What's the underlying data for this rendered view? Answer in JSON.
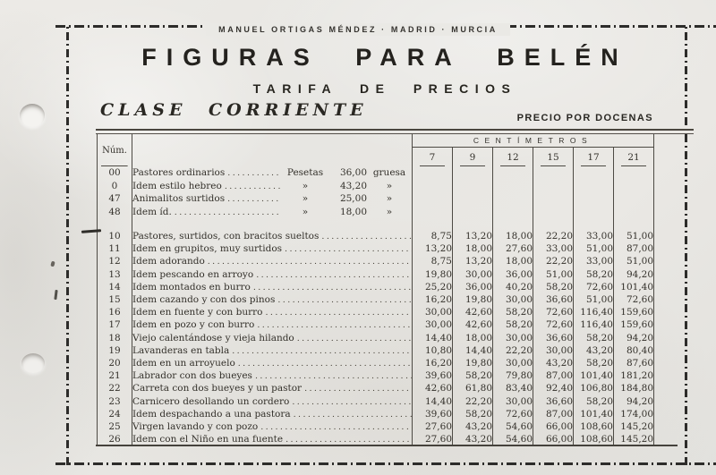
{
  "banner": "MANUEL ORTIGAS MÉNDEZ · MADRID · MURCIA",
  "title": "FIGURAS PARA BELÉN",
  "subtitle": "TARIFA DE PRECIOS",
  "class_label": "CLASE CORRIENTE",
  "price_note": "PRECIO POR DOCENAS",
  "table": {
    "num_header": "Núm.",
    "cm_header": "CENTÍMETROS",
    "sizes": [
      "7",
      "9",
      "12",
      "15",
      "17",
      "21"
    ],
    "gross_rows": [
      {
        "num": "00",
        "desc": "Pastores ordinarios",
        "unit": "Pesetas",
        "price": "36,00",
        "per": "gruesa"
      },
      {
        "num": "0",
        "desc": "Idem estilo hebreo",
        "unit": "»",
        "price": "43,20",
        "per": "»"
      },
      {
        "num": "47",
        "desc": "Animalitos surtidos",
        "unit": "»",
        "price": "25,00",
        "per": "»"
      },
      {
        "num": "48",
        "desc": "Idem íd.",
        "unit": "»",
        "price": "18,00",
        "per": "»"
      }
    ],
    "price_rows": [
      {
        "num": "10",
        "desc": "Pastores, surtidos, con bracitos sueltos",
        "prices": [
          "8,75",
          "13,20",
          "18,00",
          "22,20",
          "33,00",
          "51,00"
        ]
      },
      {
        "num": "11",
        "desc": "Idem en grupitos, muy surtidos",
        "prices": [
          "13,20",
          "18,00",
          "27,60",
          "33,00",
          "51,00",
          "87,00"
        ]
      },
      {
        "num": "12",
        "desc": "Idem adorando",
        "prices": [
          "8,75",
          "13,20",
          "18,00",
          "22,20",
          "33,00",
          "51,00"
        ]
      },
      {
        "num": "13",
        "desc": "Idem pescando en arroyo",
        "prices": [
          "19,80",
          "30,00",
          "36,00",
          "51,00",
          "58,20",
          "94,20"
        ]
      },
      {
        "num": "14",
        "desc": "Idem montados en burro",
        "prices": [
          "25,20",
          "36,00",
          "40,20",
          "58,20",
          "72,60",
          "101,40"
        ]
      },
      {
        "num": "15",
        "desc": "Idem cazando y con dos pinos",
        "prices": [
          "16,20",
          "19,80",
          "30,00",
          "36,60",
          "51,00",
          "72,60"
        ]
      },
      {
        "num": "16",
        "desc": "Idem en fuente y con burro",
        "prices": [
          "30,00",
          "42,60",
          "58,20",
          "72,60",
          "116,40",
          "159,60"
        ]
      },
      {
        "num": "17",
        "desc": "Idem en pozo y con burro",
        "prices": [
          "30,00",
          "42,60",
          "58,20",
          "72,60",
          "116,40",
          "159,60"
        ]
      },
      {
        "num": "18",
        "desc": "Viejo calentándose y vieja hilando",
        "prices": [
          "14,40",
          "18,00",
          "30,00",
          "36,60",
          "58,20",
          "94,20"
        ]
      },
      {
        "num": "19",
        "desc": "Lavanderas en tabla",
        "prices": [
          "10,80",
          "14,40",
          "22,20",
          "30,00",
          "43,20",
          "80,40"
        ]
      },
      {
        "num": "20",
        "desc": "Idem en un arroyuelo",
        "prices": [
          "16,20",
          "19,80",
          "30,00",
          "43,20",
          "58,20",
          "87,60"
        ]
      },
      {
        "num": "21",
        "desc": "Labrador con dos bueyes",
        "prices": [
          "39,60",
          "58,20",
          "79,80",
          "87,00",
          "101,40",
          "181,20"
        ]
      },
      {
        "num": "22",
        "desc": "Carreta con dos bueyes y un pastor",
        "prices": [
          "42,60",
          "61,80",
          "83,40",
          "92,40",
          "106,80",
          "184,80"
        ]
      },
      {
        "num": "23",
        "desc": "Carnicero desollando un cordero",
        "prices": [
          "14,40",
          "22,20",
          "30,00",
          "36,60",
          "58,20",
          "94,20"
        ]
      },
      {
        "num": "24",
        "desc": "Idem despachando a una pastora",
        "prices": [
          "39,60",
          "58,20",
          "72,60",
          "87,00",
          "101,40",
          "174,00"
        ]
      },
      {
        "num": "25",
        "desc": "Virgen lavando y con pozo",
        "prices": [
          "27,60",
          "43,20",
          "54,60",
          "66,00",
          "108,60",
          "145,20"
        ]
      },
      {
        "num": "26",
        "desc": "Idem con el Niño en una fuente",
        "prices": [
          "27,60",
          "43,20",
          "54,60",
          "66,00",
          "108,60",
          "145,20"
        ]
      }
    ]
  }
}
